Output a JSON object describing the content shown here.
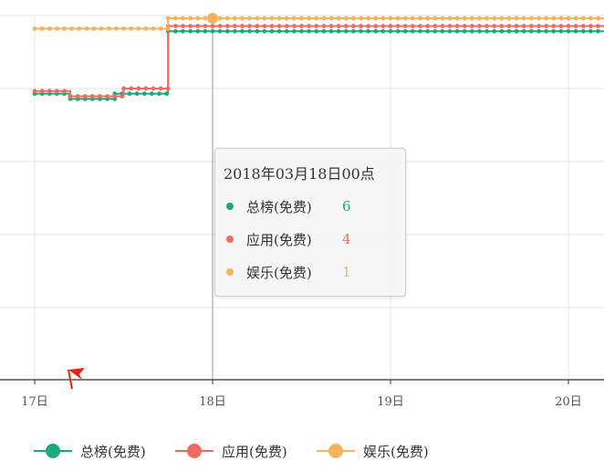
{
  "chart_data": {
    "type": "line",
    "x_axis": {
      "tick_labels": [
        "17日",
        "18日",
        "19日",
        "20日"
      ]
    },
    "grid": true,
    "legend_position": "bottom-left",
    "series": [
      {
        "name": "总榜(免费)",
        "color": "#1aaa7d",
        "segments": [
          {
            "from": 0.0,
            "to": 0.2,
            "rank": 30
          },
          {
            "from": 0.2,
            "to": 0.45,
            "rank": 32
          },
          {
            "from": 0.45,
            "to": 0.75,
            "rank": 30
          },
          {
            "from": 0.75,
            "to": 3.9,
            "rank": 6
          }
        ]
      },
      {
        "name": "应用(免费)",
        "color": "#ee6b62",
        "segments": [
          {
            "from": 0.0,
            "to": 0.2,
            "rank": 29
          },
          {
            "from": 0.2,
            "to": 0.5,
            "rank": 31
          },
          {
            "from": 0.5,
            "to": 0.75,
            "rank": 28
          },
          {
            "from": 0.75,
            "to": 3.9,
            "rank": 4
          }
        ]
      },
      {
        "name": "娱乐(免费)",
        "color": "#f6b35c",
        "segments": [
          {
            "from": 0.0,
            "to": 0.75,
            "rank": 5
          },
          {
            "from": 0.75,
            "to": 3.9,
            "rank": 1
          }
        ]
      }
    ],
    "marker": {
      "name": "flag-icon",
      "color": "#e2231a"
    }
  },
  "tooltip": {
    "title": "2018年03月18日00点",
    "rows": [
      {
        "name": "总榜(免费)",
        "value": "6",
        "color": "#1aaa7d"
      },
      {
        "name": "应用(免费)",
        "value": "4",
        "color": "#ee6b62"
      },
      {
        "name": "娱乐(免费)",
        "value": "1",
        "color": "#f6b35c"
      }
    ]
  },
  "legend": [
    {
      "name": "总榜(免费)",
      "color": "#1aaa7d"
    },
    {
      "name": "应用(免费)",
      "color": "#ee6b62"
    },
    {
      "name": "娱乐(免费)",
      "color": "#f6b35c"
    }
  ]
}
